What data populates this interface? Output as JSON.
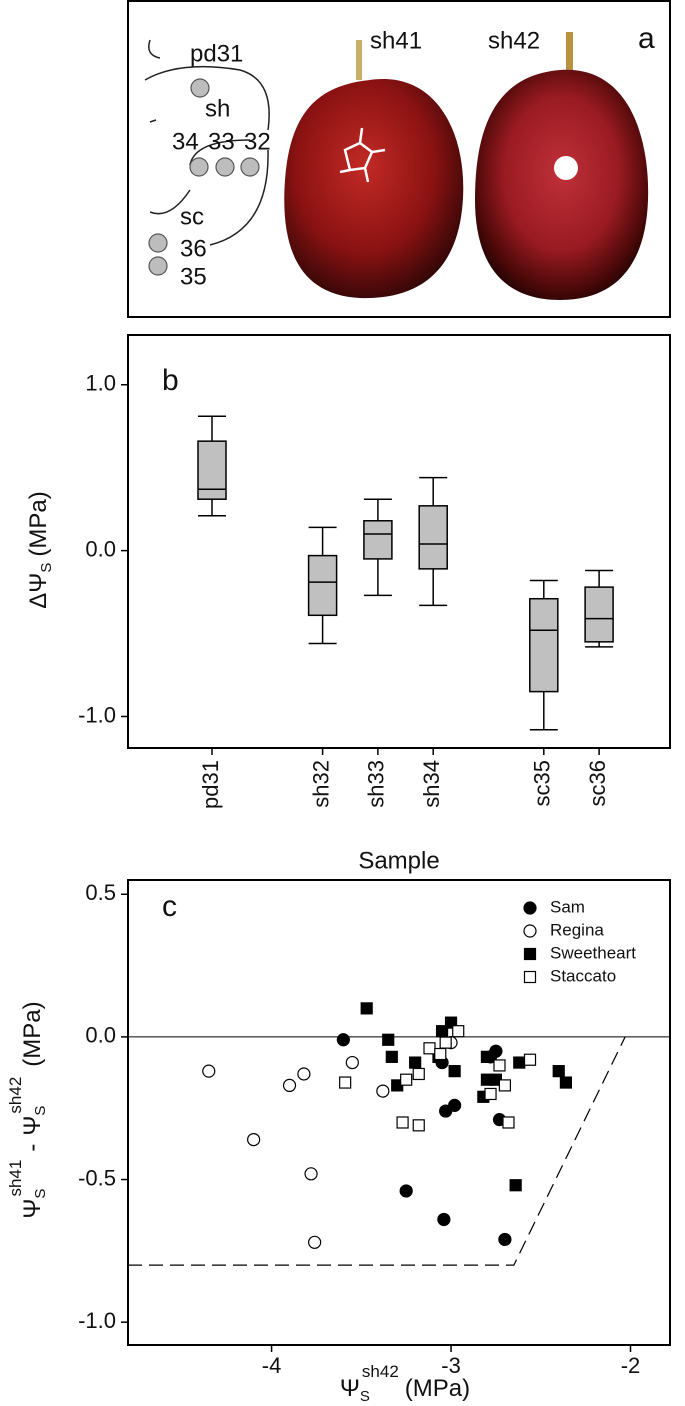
{
  "panel_a": {
    "label": "a",
    "labels": [
      "pd31",
      "sh",
      "34",
      "33",
      "32",
      "sc",
      "36",
      "35"
    ],
    "photo_labels": [
      "sh41",
      "sh42"
    ]
  },
  "chart_data": [
    {
      "type": "box",
      "panel_label": "b",
      "categories": [
        "pd31",
        null,
        "sh32",
        "sh33",
        "sh34",
        null,
        "sc35",
        "sc36"
      ],
      "boxes": [
        {
          "min": 0.21,
          "q1": 0.31,
          "median": 0.37,
          "q3": 0.66,
          "max": 0.81
        },
        null,
        {
          "min": -0.56,
          "q1": -0.39,
          "median": -0.19,
          "q3": -0.03,
          "max": 0.14
        },
        {
          "min": -0.27,
          "q1": -0.05,
          "median": 0.1,
          "q3": 0.18,
          "max": 0.31
        },
        {
          "min": -0.33,
          "q1": -0.11,
          "median": 0.04,
          "q3": 0.27,
          "max": 0.44
        },
        null,
        {
          "min": -1.08,
          "q1": -0.85,
          "median": -0.48,
          "q3": -0.29,
          "max": -0.18
        },
        {
          "min": -0.58,
          "q1": -0.55,
          "median": -0.41,
          "q3": -0.22,
          "max": -0.12
        }
      ],
      "color": "#c0c0c0",
      "ylim": [
        -1.19,
        1.3
      ],
      "yticks": [
        {
          "value": 1,
          "label": "1.0"
        },
        {
          "value": 0,
          "label": "0.0"
        },
        {
          "value": -1,
          "label": "-1.0"
        }
      ],
      "ylabel": [
        "ΔΨ",
        "S",
        "(MPa)"
      ],
      "xlabel": "Sample"
    },
    {
      "type": "scatter",
      "panel_label": "c",
      "series": [
        {
          "name": "Sam",
          "marker": "circle",
          "filled": true,
          "x": [
            -3.6,
            -3.05,
            -3.03,
            -2.98,
            -2.75,
            -2.73,
            -3.25,
            -3.04,
            -2.7,
            -2.78
          ],
          "y": [
            -0.01,
            -0.09,
            -0.26,
            -0.24,
            -0.05,
            -0.29,
            -0.54,
            -0.64,
            -0.71,
            -0.07
          ]
        },
        {
          "name": "Regina",
          "marker": "circle",
          "filled": false,
          "x": [
            -4.35,
            -4.1,
            -3.9,
            -3.82,
            -3.78,
            -3.76,
            -3.55,
            -3.38,
            -3.0
          ],
          "y": [
            -0.12,
            -0.36,
            -0.17,
            -0.13,
            -0.48,
            -0.72,
            -0.09,
            -0.19,
            -0.02
          ]
        },
        {
          "name": "Sweetheart",
          "marker": "square",
          "filled": true,
          "x": [
            -3.47,
            -3.35,
            -3.33,
            -3.3,
            -3.2,
            -3.07,
            -3.0,
            -2.98,
            -2.8,
            -2.8,
            -2.75,
            -2.62,
            -2.64,
            -2.4,
            -2.36,
            -2.82,
            -3.05
          ],
          "y": [
            0.1,
            -0.01,
            -0.07,
            -0.17,
            -0.09,
            -0.07,
            0.05,
            -0.12,
            -0.07,
            -0.15,
            -0.15,
            -0.09,
            -0.52,
            -0.12,
            -0.16,
            -0.21,
            0.02
          ]
        },
        {
          "name": "Staccato",
          "marker": "square",
          "filled": false,
          "x": [
            -3.59,
            -3.25,
            -3.18,
            -3.12,
            -3.06,
            -3.03,
            -2.96,
            -2.73,
            -2.78,
            -2.7,
            -2.56,
            -3.27,
            -3.18,
            -2.68
          ],
          "y": [
            -0.16,
            -0.15,
            -0.13,
            -0.04,
            -0.06,
            -0.02,
            0.02,
            -0.1,
            -0.2,
            -0.17,
            -0.08,
            -0.3,
            -0.31,
            -0.3
          ]
        }
      ],
      "hline": 0,
      "dashed_line": {
        "x": [
          -4.8,
          -2.65,
          -2.03
        ],
        "y": [
          -0.8,
          -0.8,
          0
        ]
      },
      "xlim": [
        -4.8,
        -1.78
      ],
      "ylim": [
        -1.08,
        0.55
      ],
      "xticks": [
        -4,
        -3,
        -2
      ],
      "yticks": [
        {
          "value": 0.5,
          "label": "0.5"
        },
        {
          "value": 0,
          "label": "0.0"
        },
        {
          "value": -0.5,
          "label": "-0.5"
        },
        {
          "value": -1,
          "label": "-1.0"
        }
      ],
      "ylabel": [
        "Ψ",
        "S",
        "sh41",
        "-",
        "Ψ",
        "S",
        "sh42",
        "(MPa)"
      ],
      "xlabel": [
        "Ψ",
        "S",
        "sh42",
        "(MPa)"
      ],
      "legend": "upper right"
    }
  ]
}
